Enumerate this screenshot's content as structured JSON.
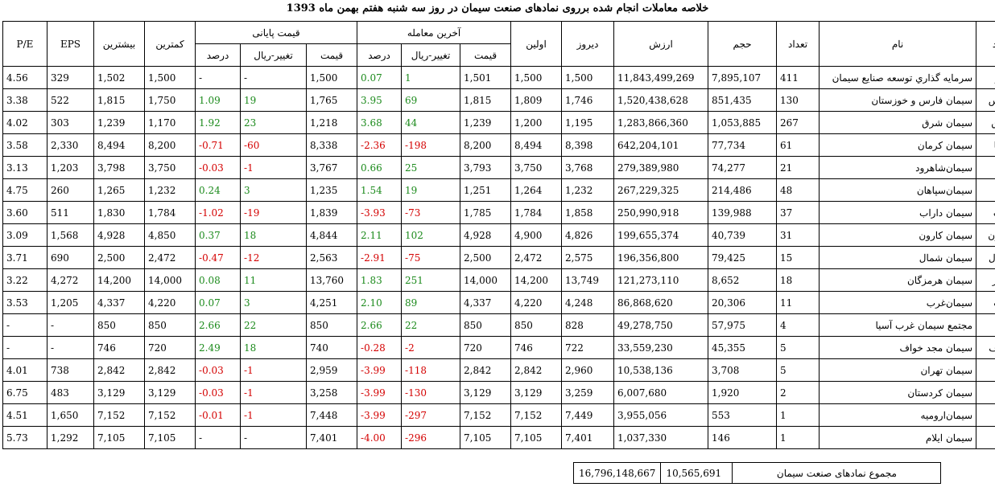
{
  "title": "خلاصه معاملات انجام شده برروی نمادهای صنعت سیمان در روز سه شنبه هفتم بهمن ماه 1393",
  "headers": {
    "symbol": "نماد",
    "name": "نام",
    "count": "تعداد",
    "volume": "حجم",
    "value": "ارزش",
    "yesterday": "دیروز",
    "first": "اولین",
    "last_trade": "آخرین معامله",
    "final_price": "قیمت پایانی",
    "price": "قیمت",
    "change": "تغییر-ریال",
    "percent": "درصد",
    "min": "کمترین",
    "max": "بیشترین",
    "eps": "EPS",
    "pe": "P/E"
  },
  "rows": [
    {
      "symbol": "سیدکو",
      "name": "سرمايه گذاري توسعه صنايع سيمان",
      "count": "411",
      "volume": "7,895,107",
      "value": "11,843,499,269",
      "yesterday": "1,500",
      "first": "1,500",
      "last_price": "1,501",
      "last_change": "1",
      "last_pct": "0.07",
      "last_dir": "pos",
      "final_price": "1,500",
      "final_change": "-",
      "final_pct": "-",
      "final_dir": "none",
      "min": "1,500",
      "max": "1,502",
      "eps": "329",
      "pe": "4.56"
    },
    {
      "symbol": "سفارس",
      "name": "سيمان فارس و خوزستان",
      "count": "130",
      "volume": "851,435",
      "value": "1,520,438,628",
      "yesterday": "1,746",
      "first": "1,809",
      "last_price": "1,815",
      "last_change": "69",
      "last_pct": "3.95",
      "last_dir": "pos",
      "final_price": "1,765",
      "final_change": "19",
      "final_pct": "1.09",
      "final_dir": "pos",
      "min": "1,750",
      "max": "1,815",
      "eps": "522",
      "pe": "3.38"
    },
    {
      "symbol": "سشرق",
      "name": "سيمان شرق",
      "count": "267",
      "volume": "1,053,885",
      "value": "1,283,866,360",
      "yesterday": "1,195",
      "first": "1,200",
      "last_price": "1,239",
      "last_change": "44",
      "last_pct": "3.68",
      "last_dir": "pos",
      "final_price": "1,218",
      "final_change": "23",
      "final_pct": "1.92",
      "final_dir": "pos",
      "min": "1,170",
      "max": "1,239",
      "eps": "303",
      "pe": "4.02"
    },
    {
      "symbol": "سکرما",
      "name": "سيمان كرمان",
      "count": "61",
      "volume": "77,734",
      "value": "642,204,101",
      "yesterday": "8,398",
      "first": "8,494",
      "last_price": "8,200",
      "last_change": "198-",
      "last_pct": "2.36-",
      "last_dir": "neg",
      "final_price": "8,338",
      "final_change": "60-",
      "final_pct": "0.71-",
      "final_dir": "neg",
      "min": "8,200",
      "max": "8,494",
      "eps": "2,330",
      "pe": "3.58"
    },
    {
      "symbol": "سرود",
      "name": "سيمان‌شاهرود",
      "count": "21",
      "volume": "74,277",
      "value": "279,389,980",
      "yesterday": "3,768",
      "first": "3,750",
      "last_price": "3,793",
      "last_change": "25",
      "last_pct": "0.66",
      "last_dir": "pos",
      "final_price": "3,767",
      "final_change": "1-",
      "final_pct": "0.03-",
      "final_dir": "neg",
      "min": "3,750",
      "max": "3,798",
      "eps": "1,203",
      "pe": "3.13"
    },
    {
      "symbol": "سپاها",
      "name": "سيمان‌سپاهان",
      "count": "48",
      "volume": "214,486",
      "value": "267,229,325",
      "yesterday": "1,232",
      "first": "1,264",
      "last_price": "1,251",
      "last_change": "19",
      "last_pct": "1.54",
      "last_dir": "pos",
      "final_price": "1,235",
      "final_change": "3",
      "final_pct": "0.24",
      "final_dir": "pos",
      "min": "1,232",
      "max": "1,265",
      "eps": "260",
      "pe": "4.75"
    },
    {
      "symbol": "ساراب",
      "name": "سيمان داراب",
      "count": "37",
      "volume": "139,988",
      "value": "250,990,918",
      "yesterday": "1,858",
      "first": "1,784",
      "last_price": "1,785",
      "last_change": "73-",
      "last_pct": "3.93-",
      "last_dir": "neg",
      "final_price": "1,839",
      "final_change": "19-",
      "final_pct": "1.02-",
      "final_dir": "neg",
      "min": "1,784",
      "max": "1,830",
      "eps": "511",
      "pe": "3.60"
    },
    {
      "symbol": "سکارون",
      "name": "سيمان كارون",
      "count": "31",
      "volume": "40,739",
      "value": "199,655,374",
      "yesterday": "4,826",
      "first": "4,900",
      "last_price": "4,928",
      "last_change": "102",
      "last_pct": "2.11",
      "last_dir": "pos",
      "final_price": "4,844",
      "final_change": "18",
      "final_pct": "0.37",
      "final_dir": "pos",
      "min": "4,850",
      "max": "4,928",
      "eps": "1,568",
      "pe": "3.09"
    },
    {
      "symbol": "سشمال",
      "name": "سيمان شمال",
      "count": "15",
      "volume": "79,425",
      "value": "196,356,800",
      "yesterday": "2,575",
      "first": "2,472",
      "last_price": "2,500",
      "last_change": "75-",
      "last_pct": "2.91-",
      "last_dir": "neg",
      "final_price": "2,563",
      "final_change": "12-",
      "final_pct": "0.47-",
      "final_dir": "neg",
      "min": "2,472",
      "max": "2,500",
      "eps": "690",
      "pe": "3.71"
    },
    {
      "symbol": "سهرمز",
      "name": "سيمان هرمزگان",
      "count": "18",
      "volume": "8,652",
      "value": "121,273,110",
      "yesterday": "13,749",
      "first": "14,200",
      "last_price": "14,000",
      "last_change": "251",
      "last_pct": "1.83",
      "last_dir": "pos",
      "final_price": "13,760",
      "final_change": "11",
      "final_pct": "0.08",
      "final_dir": "pos",
      "min": "14,000",
      "max": "14,200",
      "eps": "4,272",
      "pe": "3.22"
    },
    {
      "symbol": "سغرب",
      "name": "سيمان‌غرب",
      "count": "11",
      "volume": "20,306",
      "value": "86,868,620",
      "yesterday": "4,248",
      "first": "4,220",
      "last_price": "4,337",
      "last_change": "89",
      "last_pct": "2.10",
      "last_dir": "pos",
      "final_price": "4,251",
      "final_change": "3",
      "final_pct": "0.07",
      "final_dir": "pos",
      "min": "4,220",
      "max": "4,337",
      "eps": "1,205",
      "pe": "3.53"
    },
    {
      "symbol": "سجام",
      "name": "مجتمع سيمان غرب آسيا",
      "count": "4",
      "volume": "57,975",
      "value": "49,278,750",
      "yesterday": "828",
      "first": "850",
      "last_price": "850",
      "last_change": "22",
      "last_pct": "2.66",
      "last_dir": "pos",
      "final_price": "850",
      "final_change": "22",
      "final_pct": "2.66",
      "final_dir": "pos",
      "min": "850",
      "max": "850",
      "eps": "-",
      "pe": "-"
    },
    {
      "symbol": "سخواف",
      "name": "سيمان مجد خواف",
      "count": "5",
      "volume": "45,355",
      "value": "33,559,230",
      "yesterday": "722",
      "first": "746",
      "last_price": "720",
      "last_change": "2-",
      "last_pct": "0.28-",
      "last_dir": "neg",
      "final_price": "740",
      "final_change": "18",
      "final_pct": "2.49",
      "final_dir": "pos",
      "min": "720",
      "max": "746",
      "eps": "-",
      "pe": "-"
    },
    {
      "symbol": "ستران",
      "name": "سيمان تهران",
      "count": "5",
      "volume": "3,708",
      "value": "10,538,136",
      "yesterday": "2,960",
      "first": "2,842",
      "last_price": "2,842",
      "last_change": "118-",
      "last_pct": "3.99-",
      "last_dir": "neg",
      "final_price": "2,959",
      "final_change": "1-",
      "final_pct": "0.03-",
      "final_dir": "neg",
      "min": "2,842",
      "max": "2,842",
      "eps": "738",
      "pe": "4.01"
    },
    {
      "symbol": "سکرد",
      "name": "سيمان كردستان",
      "count": "2",
      "volume": "1,920",
      "value": "6,007,680",
      "yesterday": "3,259",
      "first": "3,129",
      "last_price": "3,129",
      "last_change": "130-",
      "last_pct": "3.99-",
      "last_dir": "neg",
      "final_price": "3,258",
      "final_change": "1-",
      "final_pct": "0.03-",
      "final_dir": "neg",
      "min": "3,129",
      "max": "3,129",
      "eps": "483",
      "pe": "6.75"
    },
    {
      "symbol": "ساروم",
      "name": "سيمان‌اروميه",
      "count": "1",
      "volume": "553",
      "value": "3,955,056",
      "yesterday": "7,449",
      "first": "7,152",
      "last_price": "7,152",
      "last_change": "297-",
      "last_pct": "3.99-",
      "last_dir": "neg",
      "final_price": "7,448",
      "final_change": "1-",
      "final_pct": "0.01-",
      "final_dir": "neg",
      "min": "7,152",
      "max": "7,152",
      "eps": "1,650",
      "pe": "4.51"
    },
    {
      "symbol": "سیلام",
      "name": "سيمان ايلام",
      "count": "1",
      "volume": "146",
      "value": "1,037,330",
      "yesterday": "7,401",
      "first": "7,105",
      "last_price": "7,105",
      "last_change": "296-",
      "last_pct": "4.00-",
      "last_dir": "neg",
      "final_price": "7,401",
      "final_change": "-",
      "final_pct": "-",
      "final_dir": "none",
      "min": "7,105",
      "max": "7,105",
      "eps": "1,292",
      "pe": "5.73"
    }
  ],
  "summary": {
    "label": "مجموع نمادهای صنعت سیمان",
    "volume": "10,565,691",
    "value": "16,796,148,667"
  },
  "colors": {
    "positive": "#1b8a1b",
    "negative": "#d40000"
  }
}
